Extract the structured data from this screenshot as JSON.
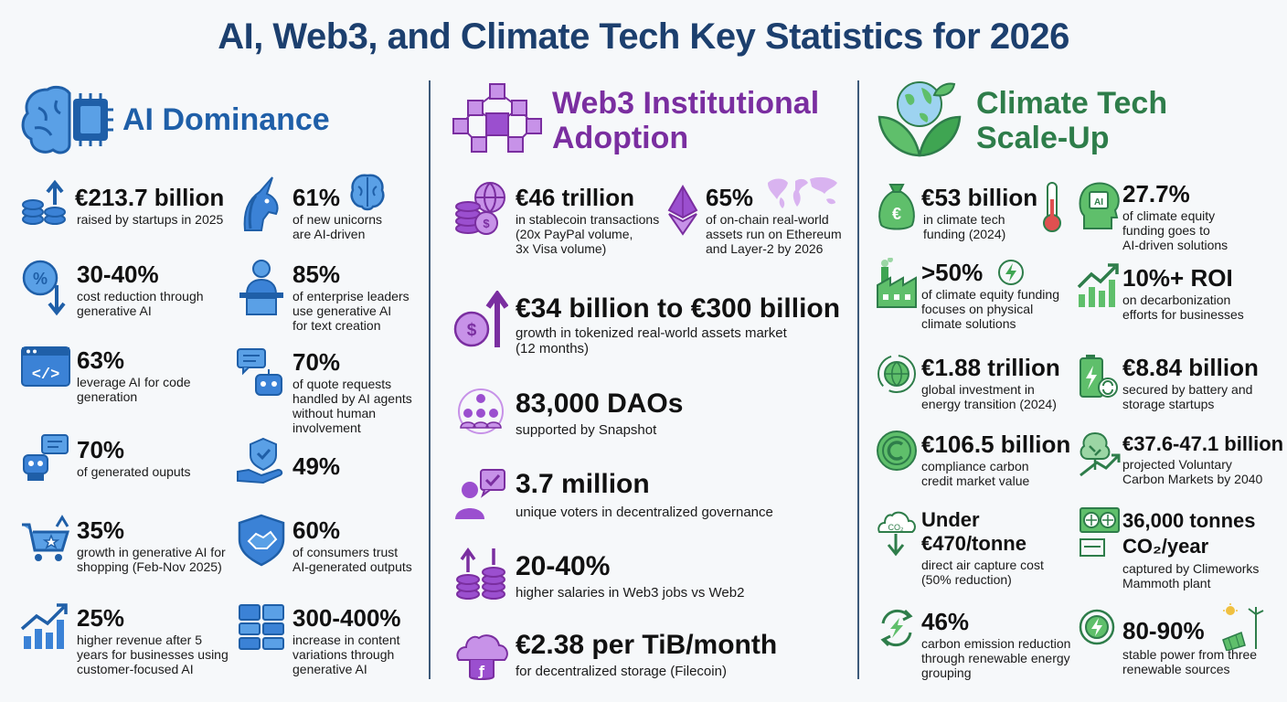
{
  "title": "AI, Web3, and Climate Tech Key Statistics for 2026",
  "colors": {
    "ai": "#1f5fa8",
    "web3": "#7a2ea0",
    "climate": "#2e7d4a",
    "divider": "#3d5a7a"
  },
  "ai": {
    "heading": "AI Dominance",
    "stats": [
      {
        "value": "€213.7 billion",
        "desc": "raised by startups in 2025",
        "icon": "coins-up-arrow-icon"
      },
      {
        "value": "61%",
        "desc": "of new unicorns\nare AI-driven",
        "icon": "unicorn-icon"
      },
      {
        "value": "30-40%",
        "desc": "cost reduction through\ngenerative AI",
        "icon": "percent-down-icon"
      },
      {
        "value": "85%",
        "desc": "of enterprise leaders\nuse generative AI\nfor text creation",
        "icon": "presenter-icon"
      },
      {
        "value": "63%",
        "desc": "leverage AI for code\ngeneration",
        "icon": "code-window-icon"
      },
      {
        "value": "70%",
        "desc": "of quote requests\nhandled by AI agents\nwithout human\ninvolvement",
        "icon": "robot-chat-icon"
      },
      {
        "value": "70%",
        "desc": "of generated ouputs",
        "icon": "robot-chat-icon"
      },
      {
        "value": "49%",
        "desc": "",
        "icon": "shield-hand-icon"
      },
      {
        "value": "35%",
        "desc": "growth in generative AI for\nshopping (Feb-Nov 2025)",
        "icon": "cart-icon"
      },
      {
        "value": "60%",
        "desc": "of consumers trust\nAI-generated outputs",
        "icon": "handshake-shield-icon"
      },
      {
        "value": "25%",
        "desc": "higher revenue after 5\nyears for businesses using\ncustomer-focused AI",
        "icon": "growth-chart-icon"
      },
      {
        "value": "300-400%",
        "desc": "increase in content\nvariations through\ngenerative AI",
        "icon": "content-grid-icon"
      }
    ]
  },
  "web3": {
    "heading": "Web3 Institutional\nAdoption",
    "stats": [
      {
        "value": "€46 trillion",
        "desc": "in stablecoin transactions\n(20x PayPal volume,\n3x Visa volume)",
        "icon": "globe-coins-icon"
      },
      {
        "value": "65%",
        "desc": "of on-chain real-world\nassets run on Ethereum\nand Layer-2 by 2026",
        "icon": "ethereum-icon"
      },
      {
        "value": "€34 billion to €300 billion",
        "desc": "growth in tokenized real-world assets market\n(12 months)",
        "icon": "coin-up-arrow-icon"
      },
      {
        "value": "83,000 DAOs",
        "desc": "supported by Snapshot",
        "icon": "community-icon"
      },
      {
        "value": "3.7 million",
        "desc": "unique voters in decentralized governance",
        "icon": "voter-icon"
      },
      {
        "value": "20-40%",
        "desc": "higher salaries in Web3 jobs vs Web2",
        "icon": "salary-coins-icon"
      },
      {
        "value": "€2.38 per TiB/month",
        "desc": "for decentralized storage (Filecoin)",
        "icon": "cloud-storage-icon"
      }
    ]
  },
  "climate": {
    "heading": "Climate Tech\nScale-Up",
    "stats": [
      {
        "value": "€53 billion",
        "desc": "in climate tech\nfunding (2024)",
        "icon": "money-bag-icon"
      },
      {
        "value": "27.7%",
        "desc": "of climate equity\nfunding goes to\nAI-driven solutions",
        "icon": "ai-head-icon"
      },
      {
        "value": ">50%",
        "desc": "of climate equity funding\nfocuses on physical\nclimate solutions",
        "icon": "factory-icon"
      },
      {
        "value": "10%+ ROI",
        "desc": "on decarbonization\nefforts for businesses",
        "icon": "growth-chart-icon"
      },
      {
        "value": "€1.88 trillion",
        "desc": "global investment in\nenergy transition (2024)",
        "icon": "globe-cycle-icon"
      },
      {
        "value": "€8.84 billion",
        "desc": "secured by battery and\nstorage startups",
        "icon": "battery-icon"
      },
      {
        "value": "€106.5 billion",
        "desc": "compliance carbon\ncredit market value",
        "icon": "carbon-coin-icon"
      },
      {
        "value": "€37.6-47.1 billion",
        "desc": "projected Voluntary\nCarbon Markets by 2040",
        "icon": "tree-growth-icon"
      },
      {
        "value": "Under\n€470/tonne",
        "desc": "direct air capture cost\n(50% reduction)",
        "icon": "co2-cloud-icon"
      },
      {
        "value": "36,000 tonnes\nCO₂/year",
        "desc": "captured by Climeworks\nMammoth plant",
        "icon": "air-capture-icon"
      },
      {
        "value": "46%",
        "desc": "carbon emission reduction\nthrough renewable energy\ngrouping",
        "icon": "energy-cycle-icon"
      },
      {
        "value": "80-90%",
        "desc": "stable power from three\nrenewable sources",
        "icon": "renewables-icon"
      }
    ]
  }
}
